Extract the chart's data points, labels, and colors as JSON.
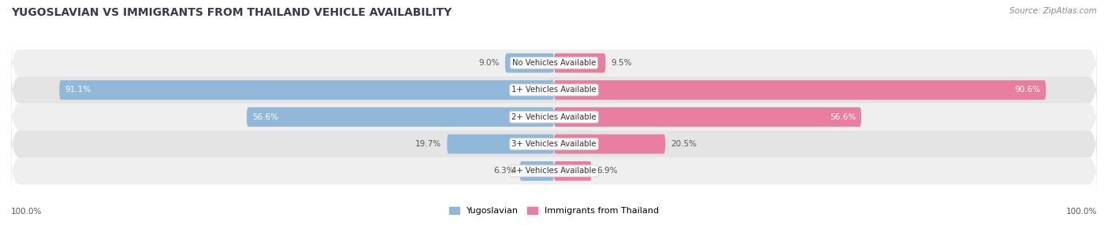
{
  "title": "YUGOSLAVIAN VS IMMIGRANTS FROM THAILAND VEHICLE AVAILABILITY",
  "source": "Source: ZipAtlas.com",
  "categories": [
    "No Vehicles Available",
    "1+ Vehicles Available",
    "2+ Vehicles Available",
    "3+ Vehicles Available",
    "4+ Vehicles Available"
  ],
  "yugoslavian": [
    9.0,
    91.1,
    56.6,
    19.7,
    6.3
  ],
  "thailand": [
    9.5,
    90.6,
    56.6,
    20.5,
    6.9
  ],
  "max_val": 100.0,
  "yugoslavian_color": "#91b8d8",
  "thailand_color": "#e87fa0",
  "row_bg_light": "#efefef",
  "row_bg_dark": "#e4e4e4",
  "fig_bg": "#ffffff",
  "title_color": "#3a3a4a",
  "label_color_dark": "#555555",
  "label_color_white": "#ffffff",
  "source_color": "#888888",
  "figsize": [
    14.06,
    2.86
  ],
  "dpi": 100,
  "legend_yug_label": "Yugoslavian",
  "legend_thai_label": "Immigrants from Thailand",
  "bottom_label": "100.0%"
}
